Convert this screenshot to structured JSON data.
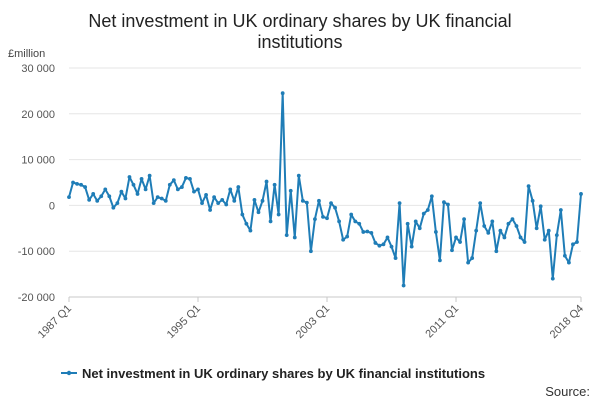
{
  "chart_data": {
    "type": "line",
    "title_line1": "Net investment in UK ordinary shares by UK financial",
    "title_line2": "institutions",
    "ylabel": "£million",
    "ylim": [
      -20000,
      30000
    ],
    "yticks": [
      -20000,
      -10000,
      0,
      10000,
      20000,
      30000
    ],
    "ytick_labels": [
      "-20 000",
      "-10 000",
      "0",
      "10 000",
      "20 000",
      "30 000"
    ],
    "xtick_labels": [
      "1987 Q1",
      "1995 Q1",
      "2003 Q1",
      "2011 Q1",
      "2018 Q4"
    ],
    "xtick_quarters": [
      "1987 Q1",
      "1995 Q1",
      "2003 Q1",
      "2011 Q1",
      "2018 Q4"
    ],
    "grid": true,
    "legend_placement": "bottom",
    "series": [
      {
        "name": "Net investment in UK ordinary shares by UK financial institutions",
        "color": "#1f7db7",
        "x_start": "1987 Q1",
        "x_end": "2018 Q4",
        "values": [
          1800,
          5000,
          4700,
          4500,
          4000,
          1200,
          2500,
          1000,
          2000,
          3500,
          2000,
          -500,
          500,
          3000,
          1500,
          6200,
          4500,
          2500,
          5800,
          3500,
          6500,
          500,
          1800,
          1500,
          1000,
          4500,
          5500,
          3500,
          4000,
          6000,
          5800,
          3000,
          3500,
          500,
          2300,
          -1000,
          1800,
          500,
          1200,
          200,
          3500,
          1000,
          4000,
          -2000,
          -4000,
          -5500,
          1200,
          -1500,
          1000,
          5200,
          -3500,
          4500,
          -2000,
          24500,
          -6500,
          3200,
          -7000,
          6500,
          1000,
          600,
          -10000,
          -3000,
          1000,
          -2500,
          -2800,
          500,
          -500,
          -3500,
          -7500,
          -6800,
          -2000,
          -3500,
          -4000,
          -5800,
          -5700,
          -6000,
          -8200,
          -8800,
          -8500,
          -7000,
          -9000,
          -11500,
          500,
          -17500,
          -4000,
          -9000,
          -3500,
          -5000,
          -1800,
          -1000,
          2000,
          -5800,
          -12000,
          700,
          200,
          -9800,
          -7000,
          -8000,
          -3000,
          -12500,
          -11500,
          -5500,
          500,
          -4500,
          -6000,
          -3500,
          -10000,
          -5500,
          -7000,
          -4000,
          -3000,
          -4500,
          -7000,
          -8000,
          4200,
          1000,
          -5000,
          -200,
          -7500,
          -5500,
          -16000,
          -6500,
          -1000,
          -11000,
          -12500,
          -8500,
          -8000,
          2500
        ]
      }
    ]
  },
  "legend": {
    "label": "Net investment in UK ordinary shares by UK financial institutions"
  },
  "footer": {
    "source_label": "Source:"
  }
}
